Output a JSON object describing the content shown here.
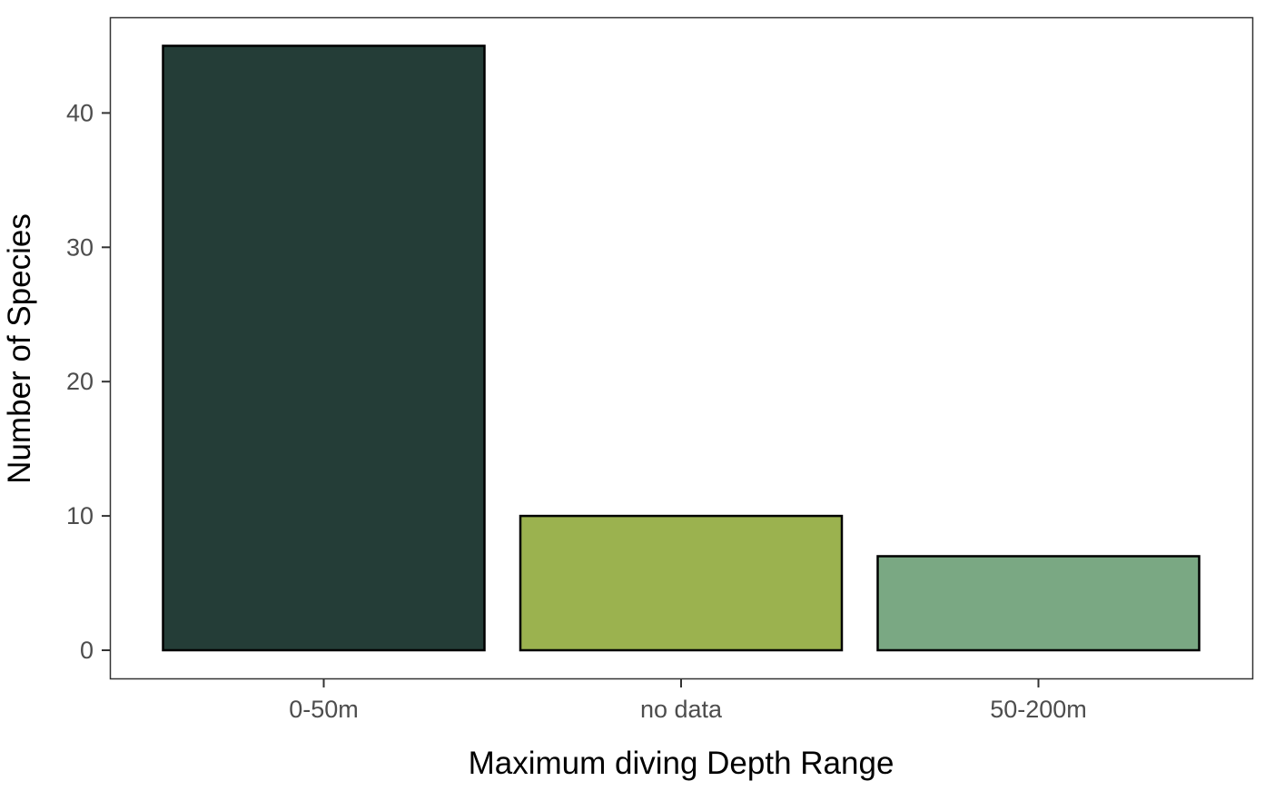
{
  "chart_data": {
    "type": "bar",
    "title": "",
    "xlabel": "Maximum diving Depth Range",
    "ylabel": "Number of Species",
    "categories": [
      "0-50m",
      "no data",
      "50-200m"
    ],
    "values": [
      45,
      10,
      7
    ],
    "colors": [
      "#243d37",
      "#9bb24f",
      "#7aa883"
    ],
    "bar_outline_color": "#000000",
    "ylim": [
      0,
      46.5
    ],
    "yticks": [
      0,
      10,
      20,
      30,
      40
    ],
    "grid": false,
    "legend": "none",
    "panel_border_color": "#333333"
  }
}
